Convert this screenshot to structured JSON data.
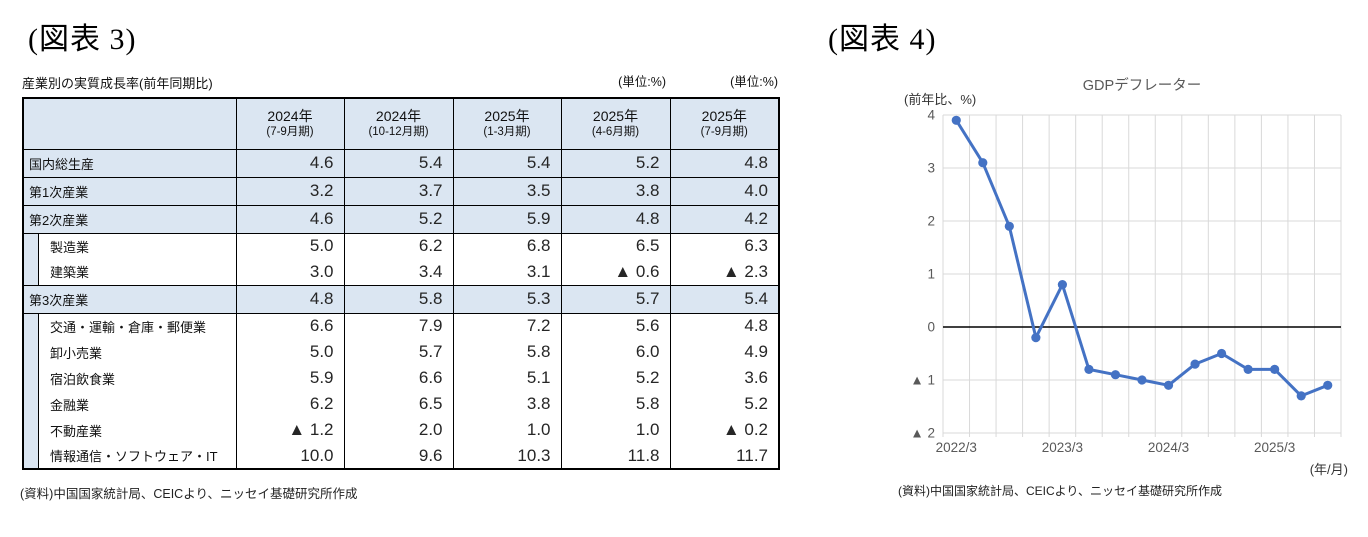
{
  "figure3": {
    "heading": "(図表 3)",
    "table_title": "産業別の実質成長率(前年同期比)",
    "unit_labels": [
      "(単位:%)",
      "(単位:%)"
    ],
    "table": {
      "columns": [
        {
          "year": "2024年",
          "period": "(7-9月期)"
        },
        {
          "year": "2024年",
          "period": "(10-12月期)"
        },
        {
          "year": "2025年",
          "period": "(1-3月期)"
        },
        {
          "year": "2025年",
          "period": "(4-6月期)"
        },
        {
          "year": "2025年",
          "period": "(7-9月期)"
        }
      ],
      "rows": [
        {
          "label": "国内総生産",
          "indent": false,
          "values": [
            "4.6",
            "5.4",
            "5.4",
            "5.2",
            "4.8"
          ]
        },
        {
          "label": "第1次産業",
          "indent": false,
          "values": [
            "3.2",
            "3.7",
            "3.5",
            "3.8",
            "4.0"
          ]
        },
        {
          "label": "第2次産業",
          "indent": false,
          "values": [
            "4.6",
            "5.2",
            "5.9",
            "4.8",
            "4.2"
          ]
        },
        {
          "label": "製造業",
          "indent": true,
          "values": [
            "5.0",
            "6.2",
            "6.8",
            "6.5",
            "6.3"
          ]
        },
        {
          "label": "建築業",
          "indent": true,
          "values": [
            "3.0",
            "3.4",
            "3.1",
            "▲ 0.6",
            "▲ 2.3"
          ]
        },
        {
          "label": "第3次産業",
          "indent": false,
          "values": [
            "4.8",
            "5.8",
            "5.3",
            "5.7",
            "5.4"
          ]
        },
        {
          "label": "交通・運輸・倉庫・郵便業",
          "indent": true,
          "values": [
            "6.6",
            "7.9",
            "7.2",
            "5.6",
            "4.8"
          ]
        },
        {
          "label": "卸小売業",
          "indent": true,
          "values": [
            "5.0",
            "5.7",
            "5.8",
            "6.0",
            "4.9"
          ]
        },
        {
          "label": "宿泊飲食業",
          "indent": true,
          "values": [
            "5.9",
            "6.6",
            "5.1",
            "5.2",
            "3.6"
          ]
        },
        {
          "label": "金融業",
          "indent": true,
          "values": [
            "6.2",
            "6.5",
            "3.8",
            "5.8",
            "5.2"
          ]
        },
        {
          "label": "不動産業",
          "indent": true,
          "values": [
            "▲ 1.2",
            "2.0",
            "1.0",
            "1.0",
            "▲ 0.2"
          ]
        },
        {
          "label": "情報通信・ソフトウェア・IT",
          "indent": true,
          "values": [
            "10.0",
            "9.6",
            "10.3",
            "11.8",
            "11.7"
          ]
        }
      ]
    },
    "source": "(資料)中国国家統計局、CEICより、ニッセイ基礎研究所作成"
  },
  "figure4": {
    "heading": "(図表 4)",
    "chart_title": "GDPデフレーター",
    "y_axis_unit": "(前年比、%)",
    "x_axis_unit": "(年/月)",
    "source": "(資料)中国国家統計局、CEICより、ニッセイ基礎研究所作成"
  },
  "chart_data": {
    "type": "line",
    "title": "GDPデフレーター",
    "ylabel": "(前年比、%)",
    "xlabel": "(年/月)",
    "x": [
      "2022/3",
      "2022/6",
      "2022/9",
      "2022/12",
      "2023/3",
      "2023/6",
      "2023/9",
      "2023/12",
      "2024/3",
      "2024/6",
      "2024/9",
      "2024/12",
      "2025/3",
      "2025/6",
      "2025/9"
    ],
    "values": [
      3.9,
      3.1,
      1.9,
      -0.2,
      0.8,
      -0.8,
      -0.9,
      -1.0,
      -1.1,
      -0.7,
      -0.5,
      -0.8,
      -0.8,
      -1.3,
      -1.1
    ],
    "x_tick_labels": [
      "2022/3",
      "2023/3",
      "2024/3",
      "2025/3"
    ],
    "y_ticks": [
      4,
      3,
      2,
      1,
      0,
      -1,
      -2
    ],
    "y_tick_labels": [
      "4",
      "3",
      "2",
      "1",
      "0",
      "▲ 1",
      "▲ 2"
    ],
    "ylim": [
      -2,
      4
    ],
    "grid": true,
    "legend": "none",
    "line_color": "#4472c4",
    "grid_color": "#d9d9d9",
    "zero_line_color": "#000000",
    "tick_label_color": "#595959"
  }
}
